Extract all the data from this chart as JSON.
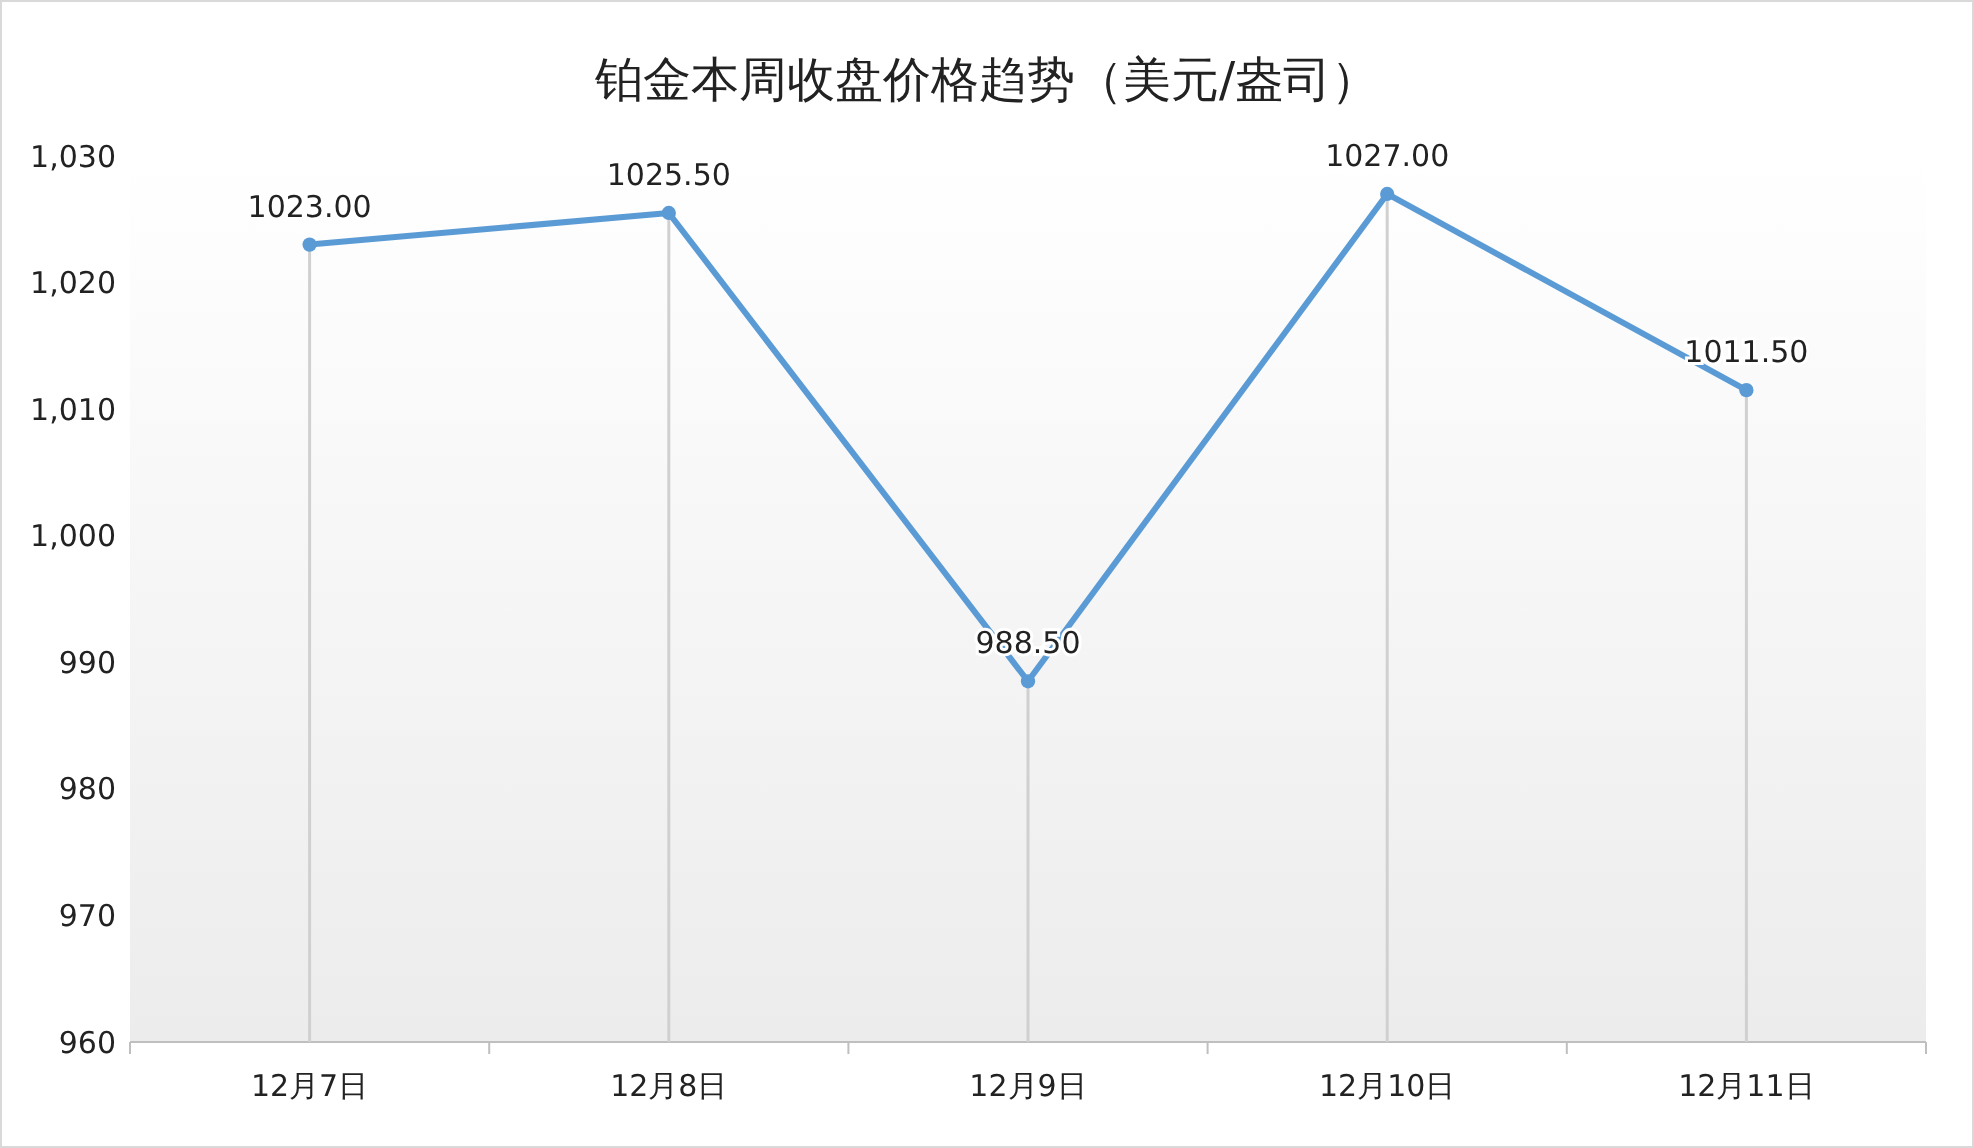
{
  "chart_data": {
    "type": "line",
    "title": "铂金本周收盘价格趋势（美元/盎司）",
    "categories": [
      "12月7日",
      "12月8日",
      "12月9日",
      "12月10日",
      "12月11日"
    ],
    "series": [
      {
        "color": "#5b9bd5",
        "values": [
          1023,
          1025.5,
          988.5,
          1027,
          1011.5
        ],
        "value_labels": [
          "1023.00",
          "1025.50",
          "988.50",
          "1027.00",
          "1011.50"
        ]
      }
    ],
    "ylim": [
      960,
      1030
    ],
    "yticks": [
      {
        "value": 960,
        "label": "960"
      },
      {
        "value": 970,
        "label": "970"
      },
      {
        "value": 980,
        "label": "980"
      },
      {
        "value": 990,
        "label": "990"
      },
      {
        "value": 1000,
        "label": "1,000"
      },
      {
        "value": 1010,
        "label": "1,010"
      },
      {
        "value": 1020,
        "label": "1,020"
      },
      {
        "value": 1030,
        "label": "1,030"
      }
    ],
    "grid": "x",
    "marker": "circle",
    "line_style": "solid"
  }
}
